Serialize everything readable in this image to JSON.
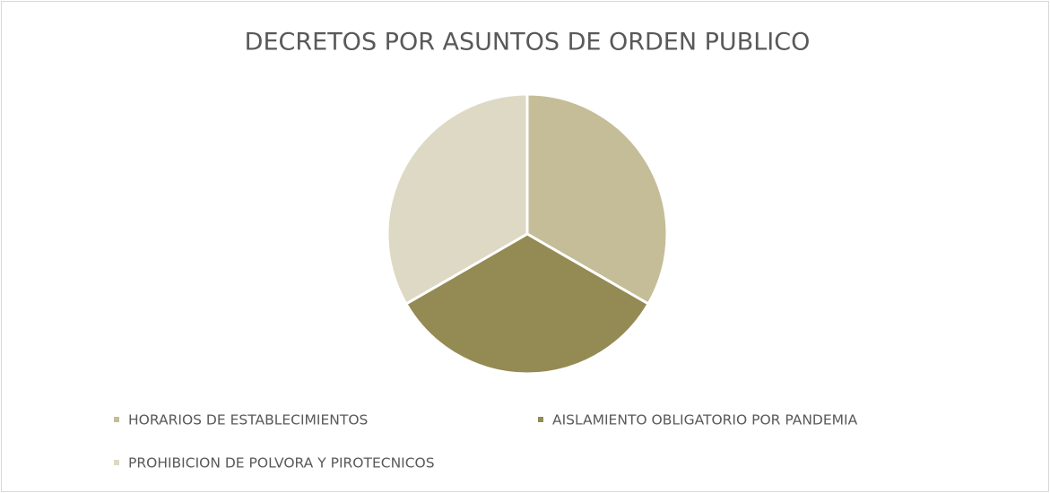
{
  "chart_data": {
    "type": "pie",
    "title": "DECRETOS POR ASUNTOS DE ORDEN PUBLICO",
    "categories": [
      "HORARIOS DE ESTABLECIMIENTOS",
      "AISLAMIENTO OBLIGATORIO POR PANDEMIA",
      "PROHIBICION DE POLVORA Y PIROTECNICOS"
    ],
    "values": [
      1,
      1,
      1
    ],
    "colors": [
      "#c4bd97",
      "#948a54",
      "#ddd9c4"
    ],
    "legend": "bottom"
  }
}
